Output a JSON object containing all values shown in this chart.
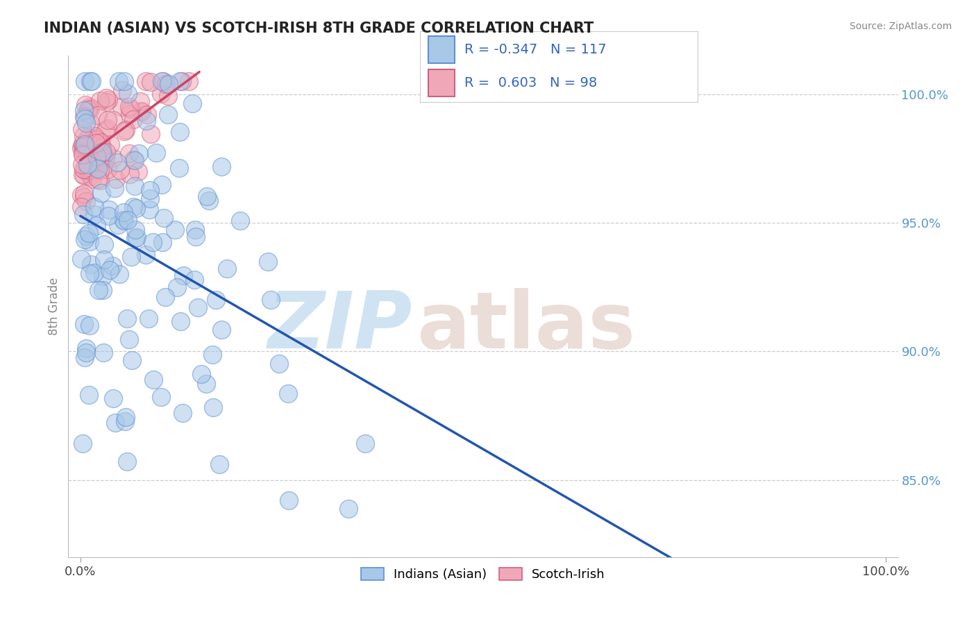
{
  "title": "INDIAN (ASIAN) VS SCOTCH-IRISH 8TH GRADE CORRELATION CHART",
  "source": "Source: ZipAtlas.com",
  "ylabel": "8th Grade",
  "yticks": [
    85.0,
    90.0,
    95.0,
    100.0
  ],
  "ytick_labels": [
    "85.0%",
    "90.0%",
    "95.0%",
    "100.0%"
  ],
  "ylim": [
    82.0,
    101.5
  ],
  "xlim": [
    -1.5,
    101.5
  ],
  "blue_R": -0.347,
  "blue_N": 117,
  "pink_R": 0.603,
  "pink_N": 98,
  "blue_color": "#a8c8e8",
  "pink_color": "#f0a8b8",
  "blue_edge_color": "#6090d0",
  "pink_edge_color": "#d06080",
  "blue_line_color": "#2255b0",
  "pink_line_color": "#cc4466",
  "legend_blue_label": "Indians (Asian)",
  "legend_pink_label": "Scotch-Irish",
  "background_color": "#ffffff",
  "grid_color": "#cccccc",
  "title_color": "#222222",
  "watermark_zip_color": "#c8dff0",
  "watermark_atlas_color": "#e8d8d0",
  "blue_trend_x0": 0.0,
  "blue_trend_y0": 97.2,
  "blue_trend_x1": 100.0,
  "blue_trend_y1": 88.8,
  "blue_trend_solid_end": 75.0,
  "blue_trend_dash_start": 75.0,
  "blue_trend_dash_end": 100.0,
  "pink_trend_x0": 0.0,
  "pink_trend_y0": 97.2,
  "pink_trend_x1": 20.0,
  "pink_trend_y1": 99.5
}
